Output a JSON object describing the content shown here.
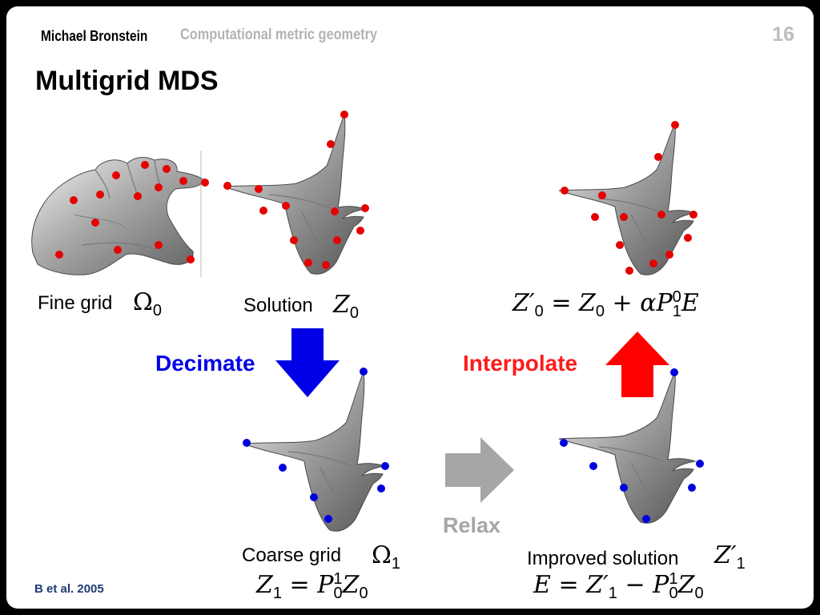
{
  "header": {
    "author": "Michael Bronstein",
    "course": "Computational metric geometry",
    "page_number": "16"
  },
  "title": "Multigrid MDS",
  "labels": {
    "fine_grid": "Fine grid",
    "solution": "Solution",
    "coarse_grid": "Coarse grid",
    "improved_solution": "Improved solution",
    "decimate": "Decimate",
    "interpolate": "Interpolate",
    "relax": "Relax"
  },
  "footer": {
    "reference": "B et al. 2005"
  },
  "colors": {
    "decimate": "#0000e6",
    "interpolate": "#ff1a1a",
    "relax": "#a6a6a6",
    "fine_points": "#e60000",
    "coarse_points": "#0000dd"
  }
}
